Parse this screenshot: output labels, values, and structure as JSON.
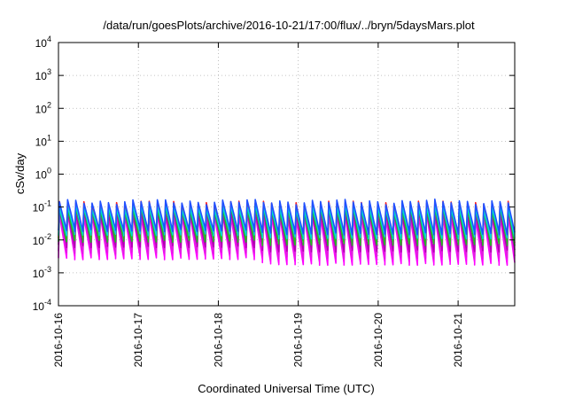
{
  "chart_data": {
    "type": "line",
    "title": "/data/run/goesPlots/archive/2016-10-21/17:00/flux/../bryn/5daysMars.plot",
    "xlabel": "Coordinated Universal Time (UTC)",
    "ylabel": "cSv/day",
    "yscale": "log",
    "ylim": [
      0.0001,
      10000
    ],
    "y_ticks": [
      {
        "value": 0.0001,
        "base": "10",
        "exp": "-4"
      },
      {
        "value": 0.001,
        "base": "10",
        "exp": "-3"
      },
      {
        "value": 0.01,
        "base": "10",
        "exp": "-2"
      },
      {
        "value": 0.1,
        "base": "10",
        "exp": "-1"
      },
      {
        "value": 1,
        "base": "10",
        "exp": "0"
      },
      {
        "value": 10,
        "base": "10",
        "exp": "1"
      },
      {
        "value": 100,
        "base": "10",
        "exp": "2"
      },
      {
        "value": 1000,
        "base": "10",
        "exp": "3"
      },
      {
        "value": 10000,
        "base": "10",
        "exp": "4"
      }
    ],
    "xlim": [
      "2016-10-16T00:00",
      "2016-10-21T17:00"
    ],
    "x_ticks": [
      "2016-10-16",
      "2016-10-17",
      "2016-10-18",
      "2016-10-19",
      "2016-10-20",
      "2016-10-21"
    ],
    "grid": true,
    "sawtooth_period_hours": 2.45,
    "series": [
      {
        "color": "#ff00ff",
        "peak": 0.055,
        "trough": 0.0028,
        "late_trough": 0.0019
      },
      {
        "color": "#e020e0",
        "peak": 0.062,
        "trough": 0.0042,
        "late_trough": 0.003
      },
      {
        "color": "#b000b0",
        "peak": 0.07,
        "trough": 0.0065,
        "late_trough": 0.0048
      },
      {
        "color": "#ff1f1f",
        "peak": 0.13,
        "trough": 0.011,
        "late_trough": 0.0085
      },
      {
        "color": "#20c020",
        "peak": 0.09,
        "trough": 0.0095,
        "late_trough": 0.0075
      },
      {
        "color": "#00d8d8",
        "peak": 0.1,
        "trough": 0.015,
        "late_trough": 0.012
      },
      {
        "color": "#2050ff",
        "peak": 0.145,
        "trough": 0.02,
        "late_trough": 0.016
      }
    ]
  }
}
